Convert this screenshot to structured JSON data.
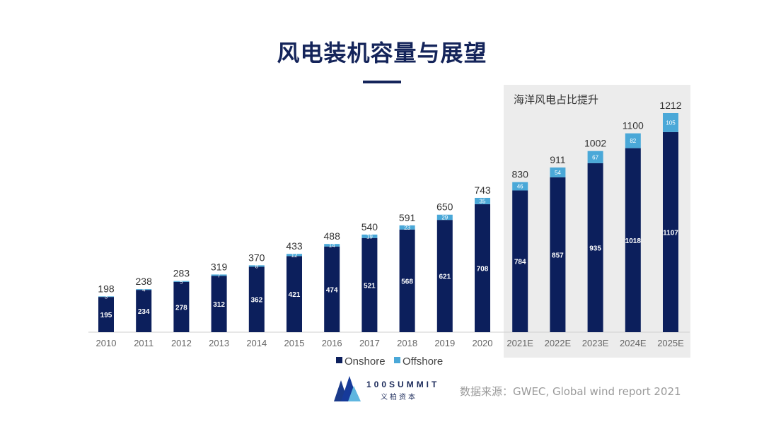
{
  "title": "风电装机容量与展望",
  "source": "数据来源：GWEC, Global wind report 2021",
  "logo": {
    "name": "100SUMMIT",
    "cn": "义柏资本"
  },
  "colors": {
    "onshore": "#0c1f5c",
    "offshore": "#4aa8d8",
    "highlight_bg": "#ececec",
    "title": "#14245a"
  },
  "chart_data": {
    "type": "bar",
    "stacked": true,
    "categories": [
      "2010",
      "2011",
      "2012",
      "2013",
      "2014",
      "2015",
      "2016",
      "2017",
      "2018",
      "2019",
      "2020",
      "2021E",
      "2022E",
      "2023E",
      "2024E",
      "2025E"
    ],
    "series": [
      {
        "name": "Onshore",
        "values": [
          195,
          234,
          278,
          312,
          362,
          421,
          474,
          521,
          568,
          621,
          708,
          784,
          857,
          935,
          1018,
          1107
        ]
      },
      {
        "name": "Offshore",
        "values": [
          3,
          4,
          5,
          7,
          8,
          12,
          14,
          19,
          23,
          29,
          35,
          46,
          54,
          67,
          82,
          105
        ]
      }
    ],
    "totals": [
      198,
      238,
      283,
      319,
      370,
      433,
      488,
      540,
      591,
      650,
      743,
      830,
      911,
      1002,
      1100,
      1212
    ],
    "highlight": {
      "label": "海洋风电占比提升",
      "categories": [
        "2021E",
        "2022E",
        "2023E",
        "2024E",
        "2025E"
      ]
    },
    "legend": "bottom",
    "grid": false,
    "ylim": [
      0,
      1212
    ]
  }
}
